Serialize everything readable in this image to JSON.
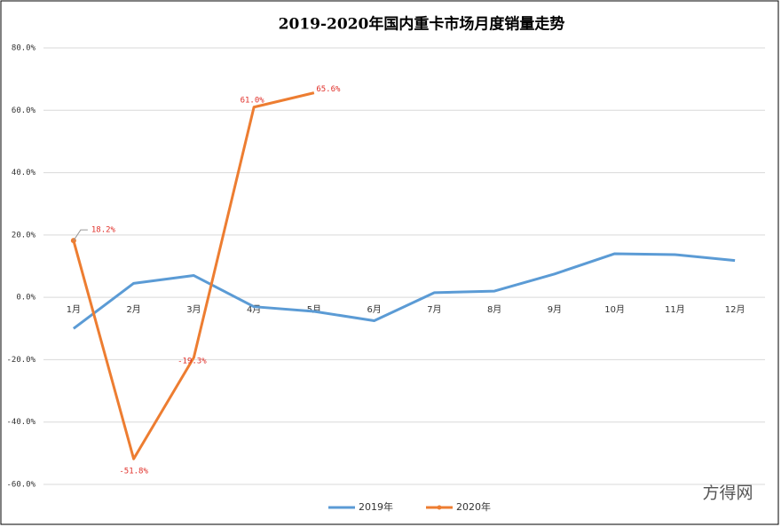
{
  "chart_data": {
    "type": "line",
    "title": "2019-2020年国内重卡市场月度销量走势",
    "categories": [
      "1月",
      "2月",
      "3月",
      "4月",
      "5月",
      "6月",
      "7月",
      "8月",
      "9月",
      "10月",
      "11月",
      "12月"
    ],
    "series": [
      {
        "name": "2019年",
        "color": "#5b9bd5",
        "values": [
          -10,
          4.5,
          7,
          -3,
          -4.5,
          -7.5,
          1.5,
          2,
          7.5,
          14,
          13.7,
          11.8
        ]
      },
      {
        "name": "2020年",
        "color": "#ed7d31",
        "values": [
          18.2,
          -51.8,
          -19.3,
          61.0,
          65.6,
          null,
          null,
          null,
          null,
          null,
          null,
          null
        ],
        "value_labels": [
          "18.2%",
          "-51.8%",
          "-19.3%",
          "61.0%",
          "65.6%",
          null,
          null,
          null,
          null,
          null,
          null,
          null
        ]
      }
    ],
    "ylim": [
      -60,
      80
    ],
    "yticks": [
      {
        "value": -60,
        "label": "-60.0%"
      },
      {
        "value": -40,
        "label": "-40.0%"
      },
      {
        "value": -20,
        "label": "-20.0%"
      },
      {
        "value": 0,
        "label": "0.0%"
      },
      {
        "value": 20,
        "label": "20.0%"
      },
      {
        "value": 40,
        "label": "40.0%"
      },
      {
        "value": 60,
        "label": "60.0%"
      },
      {
        "value": 80,
        "label": "80.0%"
      }
    ],
    "grid": true,
    "legend": "bottom",
    "watermark": "方得网"
  }
}
